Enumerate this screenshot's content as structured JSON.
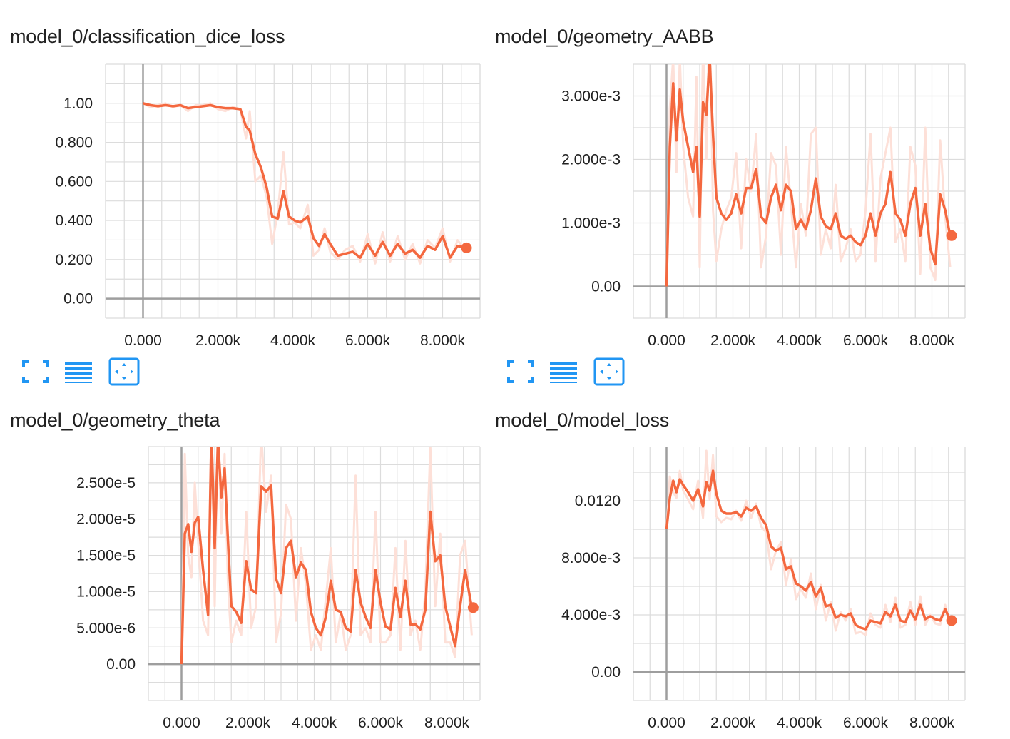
{
  "colors": {
    "accent": "#f4683f",
    "accent_light": "#fde0d8",
    "icon_blue": "#2196f3",
    "grid": "#dcdcdc",
    "axis": "#9e9e9e"
  },
  "icons": [
    "fullscreen-icon",
    "toggle-log-scale-icon",
    "fit-domain-icon"
  ],
  "chart_data": [
    {
      "type": "line",
      "title": "model_0/classification_dice_loss",
      "xlabel": "",
      "ylabel": "",
      "xlim": [
        -1000,
        9000
      ],
      "ylim": [
        -0.1,
        1.2
      ],
      "x_ticks": [
        0,
        2000,
        4000,
        6000,
        8000
      ],
      "x_tick_labels": [
        "0.000",
        "2.000k",
        "4.000k",
        "6.000k",
        "8.000k"
      ],
      "y_ticks": [
        0,
        0.2,
        0.4,
        0.6,
        0.8,
        1.0
      ],
      "y_tick_labels": [
        "0.00",
        "0.200",
        "0.400",
        "0.600",
        "0.800",
        "1.00"
      ],
      "grid": true,
      "series": [
        {
          "x": [
            0,
            200,
            400,
            600,
            800,
            1000,
            1200,
            1400,
            1600,
            1800,
            2000,
            2200,
            2400,
            2600,
            2750,
            2850,
            3000,
            3150,
            3300,
            3450,
            3600,
            3750,
            3900,
            4050,
            4200,
            4400,
            4550,
            4700,
            4850,
            5000,
            5200,
            5400,
            5600,
            5800,
            6000,
            6200,
            6400,
            6600,
            6800,
            7000,
            7200,
            7400,
            7600,
            7800,
            8000,
            8200,
            8400,
            8600
          ],
          "y": [
            1.0,
            0.99,
            0.985,
            0.99,
            0.985,
            0.99,
            0.975,
            0.98,
            0.985,
            0.99,
            0.98,
            0.975,
            0.975,
            0.97,
            0.88,
            0.86,
            0.74,
            0.67,
            0.57,
            0.42,
            0.41,
            0.55,
            0.42,
            0.4,
            0.39,
            0.42,
            0.31,
            0.27,
            0.33,
            0.28,
            0.22,
            0.23,
            0.24,
            0.21,
            0.28,
            0.22,
            0.29,
            0.22,
            0.28,
            0.23,
            0.25,
            0.21,
            0.27,
            0.25,
            0.32,
            0.21,
            0.27,
            0.26
          ],
          "y_raw": [
            1.0,
            0.98,
            0.99,
            1.0,
            0.98,
            0.99,
            0.96,
            0.99,
            0.99,
            1.0,
            0.97,
            0.96,
            0.98,
            0.97,
            0.82,
            0.96,
            0.6,
            0.63,
            0.52,
            0.28,
            0.44,
            0.75,
            0.38,
            0.39,
            0.36,
            0.48,
            0.22,
            0.25,
            0.36,
            0.24,
            0.2,
            0.25,
            0.27,
            0.19,
            0.33,
            0.18,
            0.34,
            0.19,
            0.32,
            0.2,
            0.28,
            0.18,
            0.3,
            0.26,
            0.36,
            0.19,
            0.3,
            0.25
          ]
        }
      ]
    },
    {
      "type": "line",
      "title": "model_0/geometry_AABB",
      "xlabel": "",
      "ylabel": "",
      "xlim": [
        -1000,
        9000
      ],
      "ylim": [
        -0.0005,
        0.0035
      ],
      "x_ticks": [
        0,
        2000,
        4000,
        6000,
        8000
      ],
      "x_tick_labels": [
        "0.000",
        "2.000k",
        "4.000k",
        "6.000k",
        "8.000k"
      ],
      "y_ticks": [
        0,
        0.001,
        0.002,
        0.003
      ],
      "y_tick_labels": [
        "0.00",
        "1.000e-3",
        "2.000e-3",
        "3.000e-3"
      ],
      "grid": true,
      "series": [
        {
          "x": [
            0,
            100,
            200,
            300,
            400,
            500,
            650,
            800,
            900,
            1000,
            1100,
            1200,
            1300,
            1400,
            1500,
            1650,
            1800,
            1950,
            2100,
            2250,
            2400,
            2550,
            2700,
            2850,
            3000,
            3150,
            3300,
            3450,
            3600,
            3750,
            3900,
            4050,
            4200,
            4350,
            4500,
            4650,
            4800,
            4950,
            5100,
            5250,
            5400,
            5550,
            5700,
            5850,
            6000,
            6150,
            6300,
            6450,
            6600,
            6750,
            6900,
            7050,
            7200,
            7350,
            7500,
            7650,
            7800,
            7950,
            8100,
            8250,
            8400,
            8550
          ],
          "y": [
            0.0,
            0.0022,
            0.0032,
            0.0023,
            0.0031,
            0.0026,
            0.0022,
            0.0018,
            0.0022,
            0.0011,
            0.0029,
            0.0027,
            0.0036,
            0.0024,
            0.0014,
            0.00115,
            0.00105,
            0.00115,
            0.00145,
            0.00115,
            0.00155,
            0.00155,
            0.00185,
            0.0011,
            0.001,
            0.0014,
            0.0016,
            0.0012,
            0.0016,
            0.0015,
            0.0009,
            0.00105,
            0.0009,
            0.0012,
            0.0017,
            0.0011,
            0.00095,
            0.0009,
            0.00115,
            0.0008,
            0.00075,
            0.0008,
            0.0007,
            0.00065,
            0.0008,
            0.00115,
            0.0008,
            0.00115,
            0.0013,
            0.0018,
            0.00115,
            0.00105,
            0.0008,
            0.0013,
            0.00155,
            0.0008,
            0.0013,
            0.0006,
            0.00035,
            0.00145,
            0.0012,
            0.0008
          ],
          "y_raw": [
            0.0,
            0.0028,
            0.0036,
            0.0018,
            0.0036,
            0.0022,
            0.0014,
            0.0011,
            0.0033,
            0.0003,
            0.0038,
            0.002,
            0.0045,
            0.0012,
            0.0004,
            0.0009,
            0.0012,
            0.0014,
            0.0021,
            0.0006,
            0.002,
            0.0015,
            0.0024,
            0.0003,
            0.0008,
            0.0021,
            0.0019,
            0.0005,
            0.0022,
            0.0013,
            0.0003,
            0.0013,
            0.0008,
            0.0024,
            0.0025,
            0.0005,
            0.0009,
            0.0006,
            0.0016,
            0.0004,
            0.0006,
            0.0009,
            0.0004,
            0.0005,
            0.0012,
            0.0024,
            0.0004,
            0.0017,
            0.0021,
            0.0025,
            0.0007,
            0.0009,
            0.0004,
            0.0022,
            0.0019,
            0.0002,
            0.0025,
            0.0003,
            0.0001,
            0.0023,
            0.0011,
            0.0003
          ]
        }
      ]
    },
    {
      "type": "line",
      "title": "model_0/geometry_theta",
      "xlabel": "",
      "ylabel": "",
      "xlim": [
        -1000,
        9000
      ],
      "ylim": [
        -5e-06,
        3e-05
      ],
      "x_ticks": [
        0,
        2000,
        4000,
        6000,
        8000
      ],
      "x_tick_labels": [
        "0.000",
        "2.000k",
        "4.000k",
        "6.000k",
        "8.000k"
      ],
      "y_ticks": [
        0,
        5e-06,
        1e-05,
        1.5e-05,
        2e-05,
        2.5e-05
      ],
      "y_tick_labels": [
        "0.00",
        "5.000e-6",
        "1.000e-5",
        "1.500e-5",
        "2.000e-5",
        "2.500e-5"
      ],
      "grid": true,
      "series": [
        {
          "x": [
            0,
            100,
            200,
            300,
            400,
            500,
            650,
            800,
            900,
            1000,
            1100,
            1200,
            1300,
            1400,
            1500,
            1650,
            1800,
            1950,
            2100,
            2250,
            2400,
            2550,
            2700,
            2850,
            3000,
            3150,
            3300,
            3450,
            3600,
            3750,
            3900,
            4050,
            4200,
            4350,
            4500,
            4650,
            4800,
            4950,
            5100,
            5250,
            5400,
            5550,
            5700,
            5850,
            6000,
            6150,
            6300,
            6450,
            6600,
            6750,
            6900,
            7050,
            7200,
            7350,
            7500,
            7650,
            7800,
            7950,
            8100,
            8250,
            8400,
            8550,
            8750
          ],
          "y": [
            0.0,
            1.8e-05,
            1.93e-05,
            1.55e-05,
            1.95e-05,
            2.03e-05,
            1.3e-05,
            6.8e-06,
            3.2e-05,
            1.6e-05,
            3.1e-05,
            2.3e-05,
            2.7e-05,
            1.7e-05,
            8e-06,
            7.2e-06,
            5.7e-06,
            1.42e-05,
            1.03e-05,
            9.8e-06,
            2.45e-05,
            2.38e-05,
            2.46e-05,
            1.18e-05,
            9.8e-06,
            1.6e-05,
            1.7e-05,
            1.2e-05,
            1.4e-05,
            1.3e-05,
            7.2e-06,
            5e-06,
            4e-06,
            6.5e-06,
            1.15e-05,
            7.5e-06,
            7.2e-06,
            5e-06,
            4.5e-06,
            1.3e-05,
            8.5e-06,
            6.5e-06,
            5e-06,
            1.3e-05,
            8.5e-06,
            5.2e-06,
            4.8e-06,
            1.05e-05,
            6.5e-06,
            1.15e-05,
            5.5e-06,
            5.5e-06,
            4.8e-06,
            7.5e-06,
            2.1e-05,
            1.42e-05,
            1.5e-05,
            8e-06,
            5.2e-06,
            2.5e-06,
            8e-06,
            1.3e-05,
            7.8e-06
          ],
          "y_raw": [
            0.0,
            2.9e-05,
            1.5e-05,
            1.2e-05,
            2.5e-05,
            1.7e-05,
            6e-06,
            4e-06,
            3.5e-05,
            8e-06,
            3.3e-05,
            1.8e-05,
            2.9e-05,
            1.1e-05,
            3e-06,
            6e-06,
            4e-06,
            2.1e-05,
            5e-06,
            8e-06,
            3.2e-05,
            2.1e-05,
            2.6e-05,
            3e-06,
            7e-06,
            2.2e-05,
            2e-05,
            6e-06,
            1.6e-05,
            1.1e-05,
            2e-06,
            4e-06,
            2e-06,
            9e-06,
            1.6e-05,
            3e-06,
            7e-06,
            2e-06,
            4e-06,
            2.6e-05,
            4e-06,
            5e-06,
            3e-06,
            2.1e-05,
            3e-06,
            3e-06,
            4e-06,
            1.6e-05,
            2e-06,
            1.7e-05,
            4e-06,
            6e-06,
            2e-06,
            1e-05,
            3e-05,
            8e-06,
            1.8e-05,
            3e-06,
            3e-06,
            1e-06,
            1.5e-05,
            1.7e-05,
            4e-06
          ]
        }
      ]
    },
    {
      "type": "line",
      "title": "model_0/model_loss",
      "xlabel": "",
      "ylabel": "",
      "xlim": [
        -1000,
        9000
      ],
      "ylim": [
        -0.002,
        0.0158
      ],
      "x_ticks": [
        0,
        2000,
        4000,
        6000,
        8000
      ],
      "x_tick_labels": [
        "0.000",
        "2.000k",
        "4.000k",
        "6.000k",
        "8.000k"
      ],
      "y_ticks": [
        0,
        0.004,
        0.008,
        0.012
      ],
      "y_tick_labels": [
        "0.00",
        "4.000e-3",
        "8.000e-3",
        "0.0120"
      ],
      "grid": true,
      "series": [
        {
          "x": [
            0,
            100,
            200,
            300,
            400,
            500,
            650,
            800,
            950,
            1100,
            1200,
            1300,
            1400,
            1500,
            1650,
            1800,
            1950,
            2100,
            2250,
            2400,
            2550,
            2700,
            2850,
            3000,
            3150,
            3300,
            3450,
            3600,
            3750,
            3900,
            4050,
            4200,
            4350,
            4500,
            4650,
            4800,
            4950,
            5100,
            5250,
            5400,
            5550,
            5700,
            5850,
            6000,
            6150,
            6300,
            6450,
            6600,
            6750,
            6900,
            7050,
            7200,
            7350,
            7500,
            7650,
            7800,
            7950,
            8100,
            8250,
            8400,
            8550
          ],
          "y": [
            0.01,
            0.0122,
            0.0134,
            0.0126,
            0.0135,
            0.0131,
            0.0126,
            0.012,
            0.0128,
            0.0116,
            0.0133,
            0.0127,
            0.0141,
            0.0125,
            0.0113,
            0.0111,
            0.0111,
            0.0112,
            0.0109,
            0.0115,
            0.0113,
            0.0116,
            0.0108,
            0.0103,
            0.0088,
            0.0085,
            0.0087,
            0.0072,
            0.0074,
            0.0062,
            0.006,
            0.0057,
            0.0063,
            0.0053,
            0.0059,
            0.0046,
            0.0047,
            0.0038,
            0.004,
            0.0039,
            0.0041,
            0.0033,
            0.0031,
            0.003,
            0.0036,
            0.0035,
            0.0034,
            0.0042,
            0.0039,
            0.0047,
            0.0036,
            0.0035,
            0.0043,
            0.0037,
            0.0047,
            0.0037,
            0.0039,
            0.0037,
            0.0036,
            0.0044,
            0.0036
          ],
          "y_raw": [
            0.01,
            0.0137,
            0.0126,
            0.0122,
            0.0141,
            0.0127,
            0.0121,
            0.0114,
            0.0134,
            0.0108,
            0.0155,
            0.0121,
            0.0152,
            0.0109,
            0.0105,
            0.0108,
            0.0107,
            0.0113,
            0.0106,
            0.012,
            0.0108,
            0.0118,
            0.0102,
            0.0098,
            0.0072,
            0.0085,
            0.0091,
            0.0061,
            0.0079,
            0.0051,
            0.0058,
            0.0052,
            0.0069,
            0.0044,
            0.0061,
            0.0036,
            0.0049,
            0.0029,
            0.0042,
            0.0036,
            0.0044,
            0.0027,
            0.0028,
            0.0026,
            0.0041,
            0.0033,
            0.0031,
            0.0047,
            0.0035,
            0.0052,
            0.0031,
            0.0033,
            0.0049,
            0.0033,
            0.0053,
            0.0033,
            0.004,
            0.0034,
            0.0033,
            0.0047,
            0.0032
          ]
        }
      ]
    }
  ]
}
